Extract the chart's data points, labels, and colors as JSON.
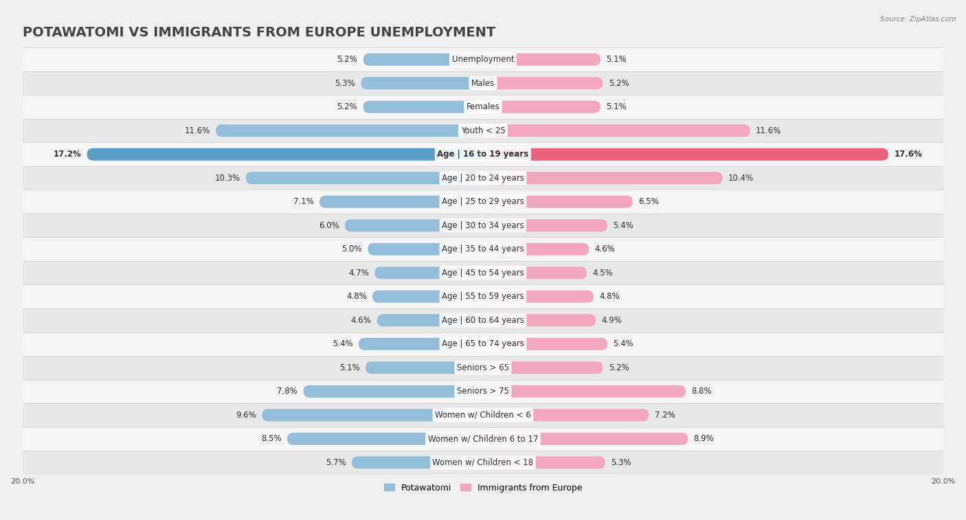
{
  "title": "POTAWATOMI VS IMMIGRANTS FROM EUROPE UNEMPLOYMENT",
  "source": "Source: ZipAtlas.com",
  "categories": [
    "Unemployment",
    "Males",
    "Females",
    "Youth < 25",
    "Age | 16 to 19 years",
    "Age | 20 to 24 years",
    "Age | 25 to 29 years",
    "Age | 30 to 34 years",
    "Age | 35 to 44 years",
    "Age | 45 to 54 years",
    "Age | 55 to 59 years",
    "Age | 60 to 64 years",
    "Age | 65 to 74 years",
    "Seniors > 65",
    "Seniors > 75",
    "Women w/ Children < 6",
    "Women w/ Children 6 to 17",
    "Women w/ Children < 18"
  ],
  "potawatomi": [
    5.2,
    5.3,
    5.2,
    11.6,
    17.2,
    10.3,
    7.1,
    6.0,
    5.0,
    4.7,
    4.8,
    4.6,
    5.4,
    5.1,
    7.8,
    9.6,
    8.5,
    5.7
  ],
  "immigrants": [
    5.1,
    5.2,
    5.1,
    11.6,
    17.6,
    10.4,
    6.5,
    5.4,
    4.6,
    4.5,
    4.8,
    4.9,
    5.4,
    5.2,
    8.8,
    7.2,
    8.9,
    5.3
  ],
  "potawatomi_color": "#94bdd9",
  "immigrants_color": "#f2a7bc",
  "highlight_potawatomi_color": "#5a9ec8",
  "highlight_immigrants_color": "#e8607a",
  "background_row_light": "#f5f5f5",
  "background_row_dark": "#e8e8e8",
  "fig_background": "#f0f0f0",
  "xlim": 20.0,
  "bar_height": 0.52,
  "title_fontsize": 14,
  "label_fontsize": 8.5,
  "value_fontsize": 8.5,
  "axis_label_fontsize": 8
}
